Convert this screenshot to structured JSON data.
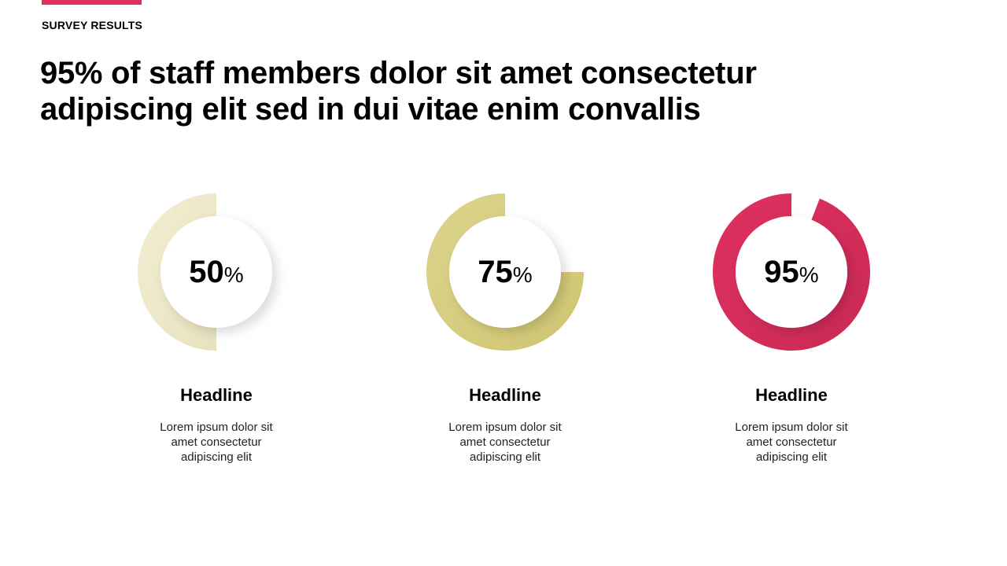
{
  "header": {
    "eyebrow": "SURVEY RESULTS",
    "title": "95% of staff members dolor sit amet consectetur adipiscing elit sed in dui vitae enim convallis",
    "accent_color": "#E0305F"
  },
  "chart_data": {
    "type": "pie",
    "title": "",
    "series": [
      {
        "value": 50,
        "unit": "%",
        "headline": "Headline",
        "description": "Lorem ipsum dolor sit amet consectetur adipiscing elit",
        "color": "#F2EED3",
        "color_dark": "#E7E2BE"
      },
      {
        "value": 75,
        "unit": "%",
        "headline": "Headline",
        "description": "Lorem ipsum dolor sit amet consectetur adipiscing elit",
        "color": "#DCD48C",
        "color_dark": "#CFC671"
      },
      {
        "value": 95,
        "unit": "%",
        "headline": "Headline",
        "description": "Lorem ipsum dolor sit amet consectetur adipiscing elit",
        "color": "#E0305F",
        "color_dark": "#C92A55"
      }
    ]
  }
}
